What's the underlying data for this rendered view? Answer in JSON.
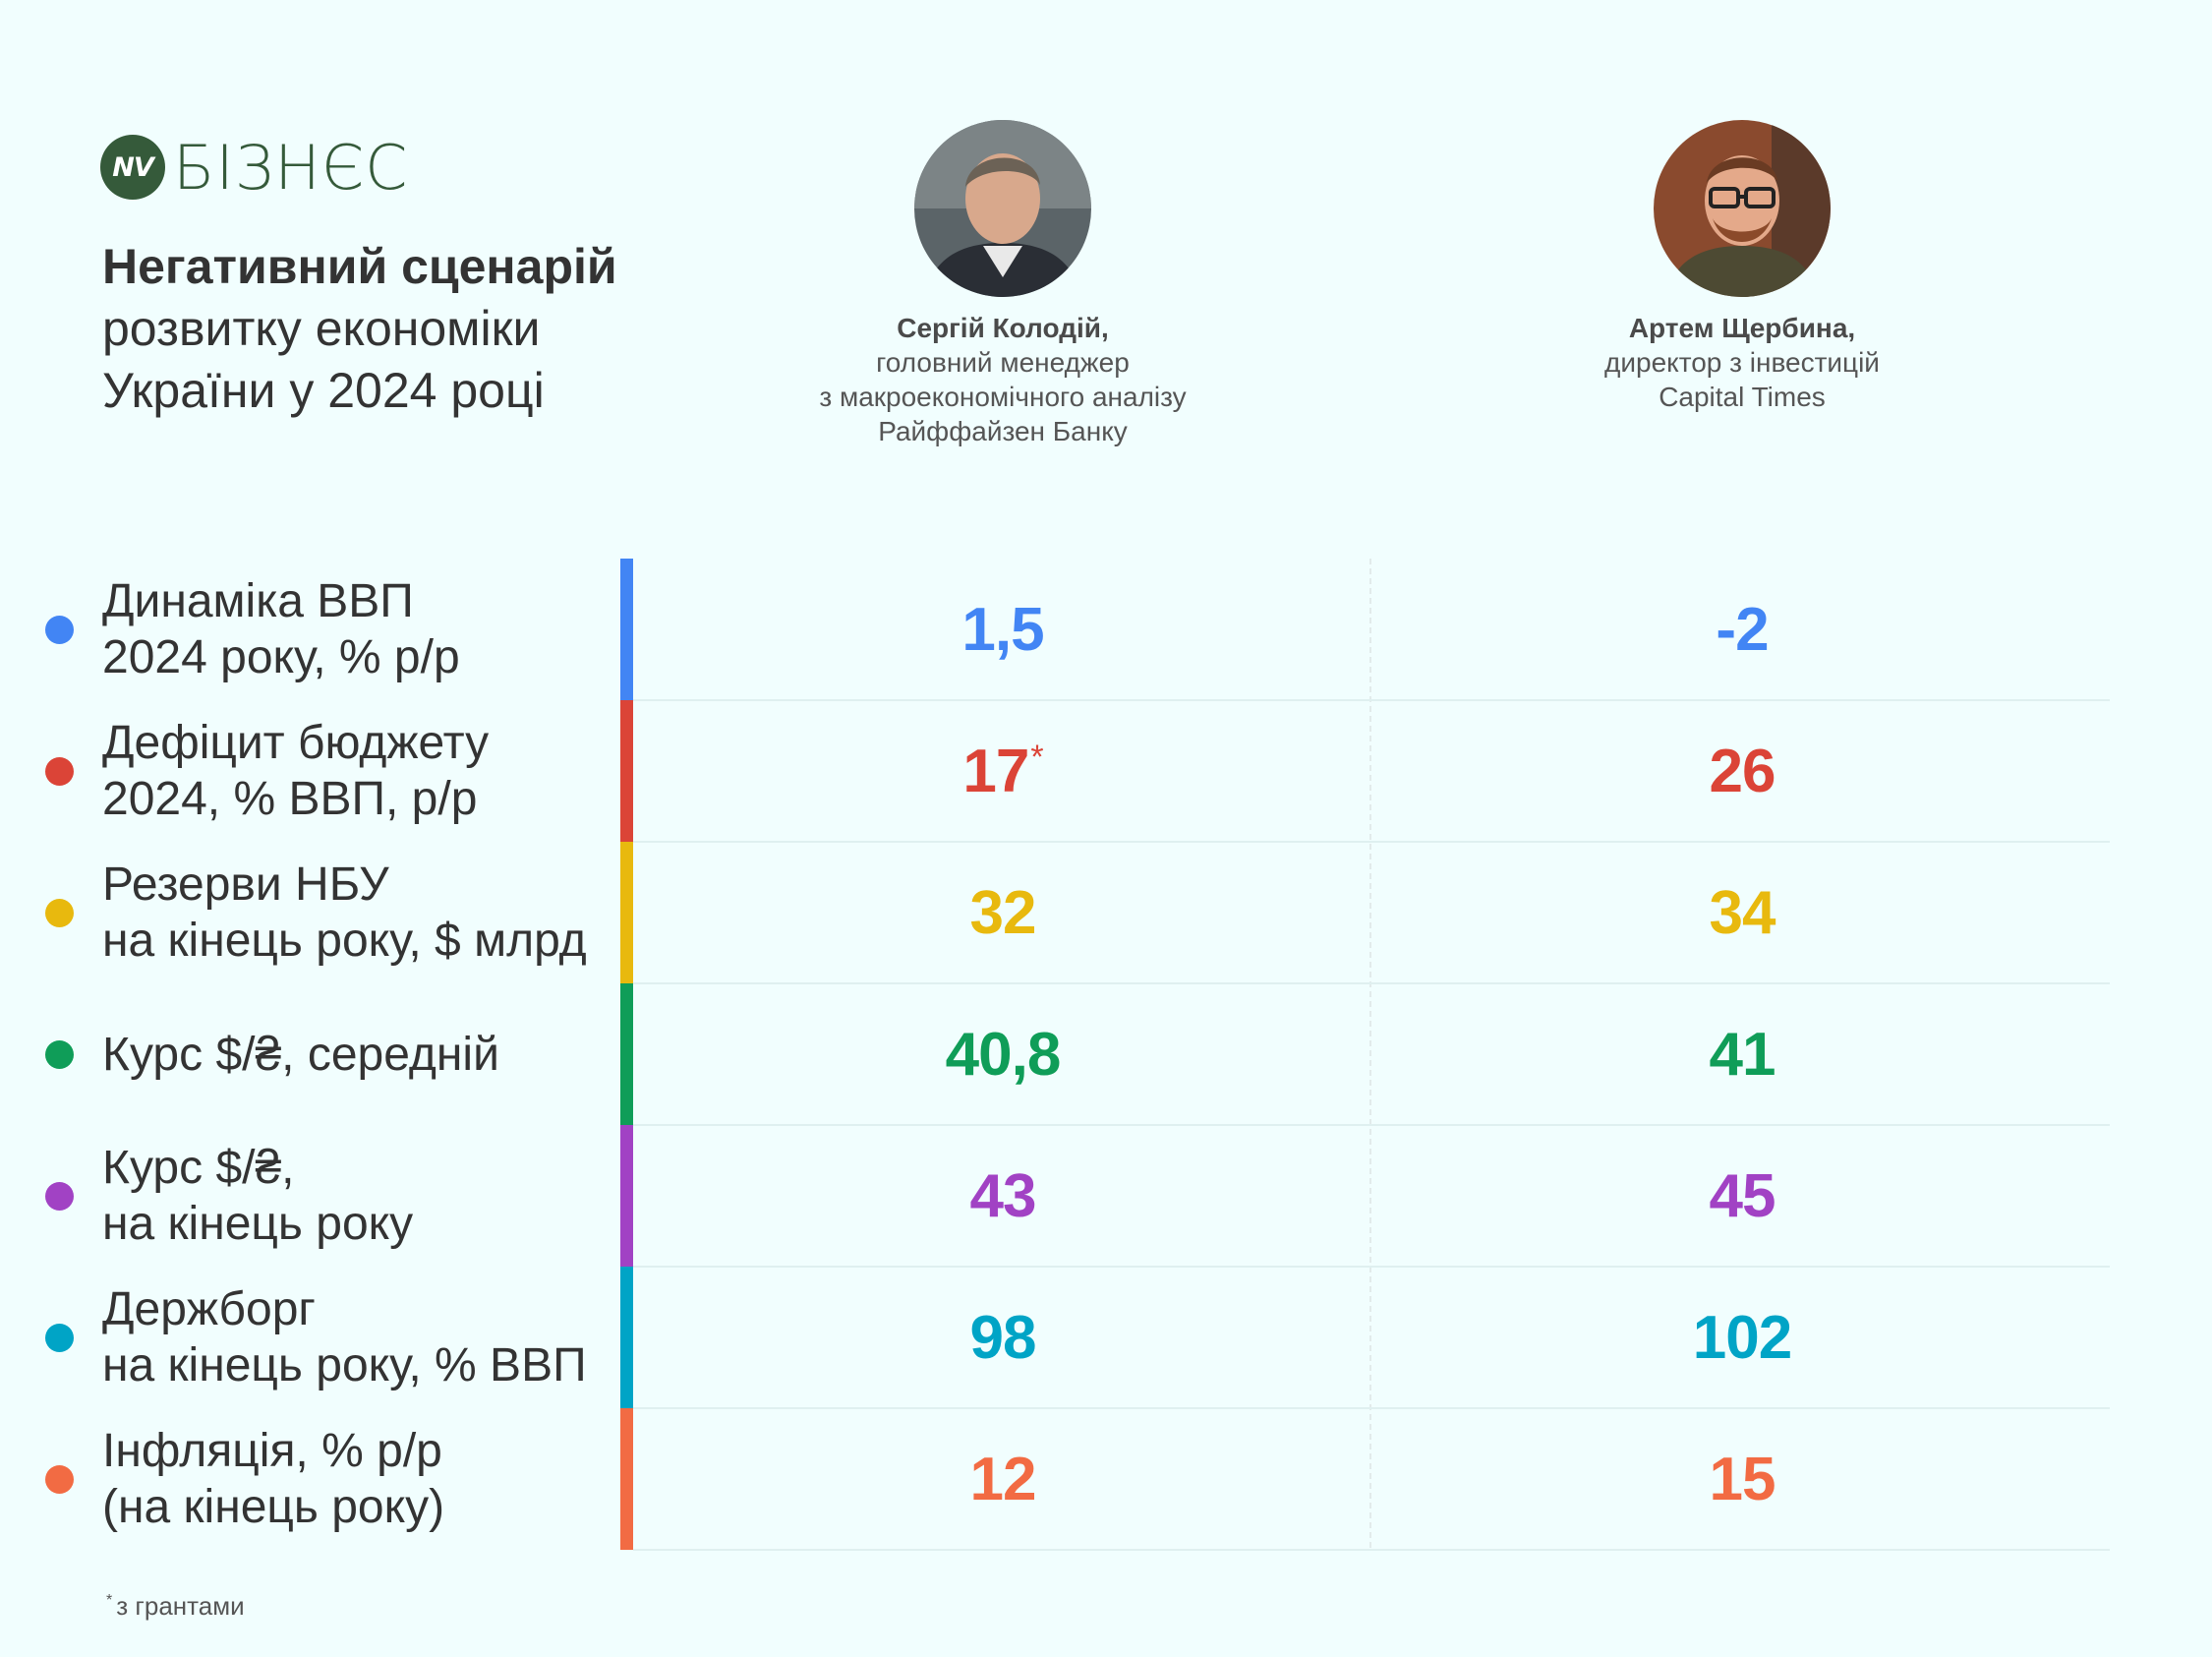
{
  "logo": {
    "badge": "NV",
    "word": "БІЗНЄС"
  },
  "title": {
    "line1": "Негативний сценарій",
    "line2": "розвитку економіки",
    "line3": "України у 2024 році"
  },
  "experts": [
    {
      "name": "Сергій Колодій,",
      "role_lines": [
        "головний менеджер",
        "з макроекономічного аналізу",
        "Райффайзен Банку"
      ]
    },
    {
      "name": "Артем Щербина,",
      "role_lines": [
        "директор з інвестицій",
        "Capital Times"
      ]
    }
  ],
  "chart_data": {
    "type": "table",
    "columns": [
      "Сергій Колодій",
      "Артем Щербина"
    ],
    "rows": [
      {
        "label_lines": [
          "Динаміка ВВП",
          "2024 року, % р/р"
        ],
        "values": [
          "1,5",
          "-2"
        ],
        "color": "#4285f4"
      },
      {
        "label_lines": [
          "Дефіцит бюджету",
          "2024, % ВВП, р/р"
        ],
        "values": [
          "17",
          "26"
        ],
        "marks": [
          "*",
          ""
        ],
        "color": "#db4437"
      },
      {
        "label_lines": [
          "Резерви НБУ",
          "на кінець року, $ млрд"
        ],
        "values": [
          "32",
          "34"
        ],
        "color": "#e8b90e"
      },
      {
        "label_lines": [
          "Курс $/₴, середній"
        ],
        "values": [
          "40,8",
          "41"
        ],
        "color": "#0f9d58"
      },
      {
        "label_lines": [
          "Курс $/₴,",
          "на кінець року"
        ],
        "values": [
          "43",
          "45"
        ],
        "color": "#a142c4"
      },
      {
        "label_lines": [
          "Держборг",
          "на кінець року, % ВВП"
        ],
        "values": [
          "98",
          "102"
        ],
        "color": "#00a4c6"
      },
      {
        "label_lines": [
          "Інфляція, % р/р",
          "(на кінець року)"
        ],
        "values": [
          "12",
          "15"
        ],
        "color": "#f26b43"
      }
    ]
  },
  "footnote": {
    "mark": "*",
    "text": "з грантами"
  }
}
